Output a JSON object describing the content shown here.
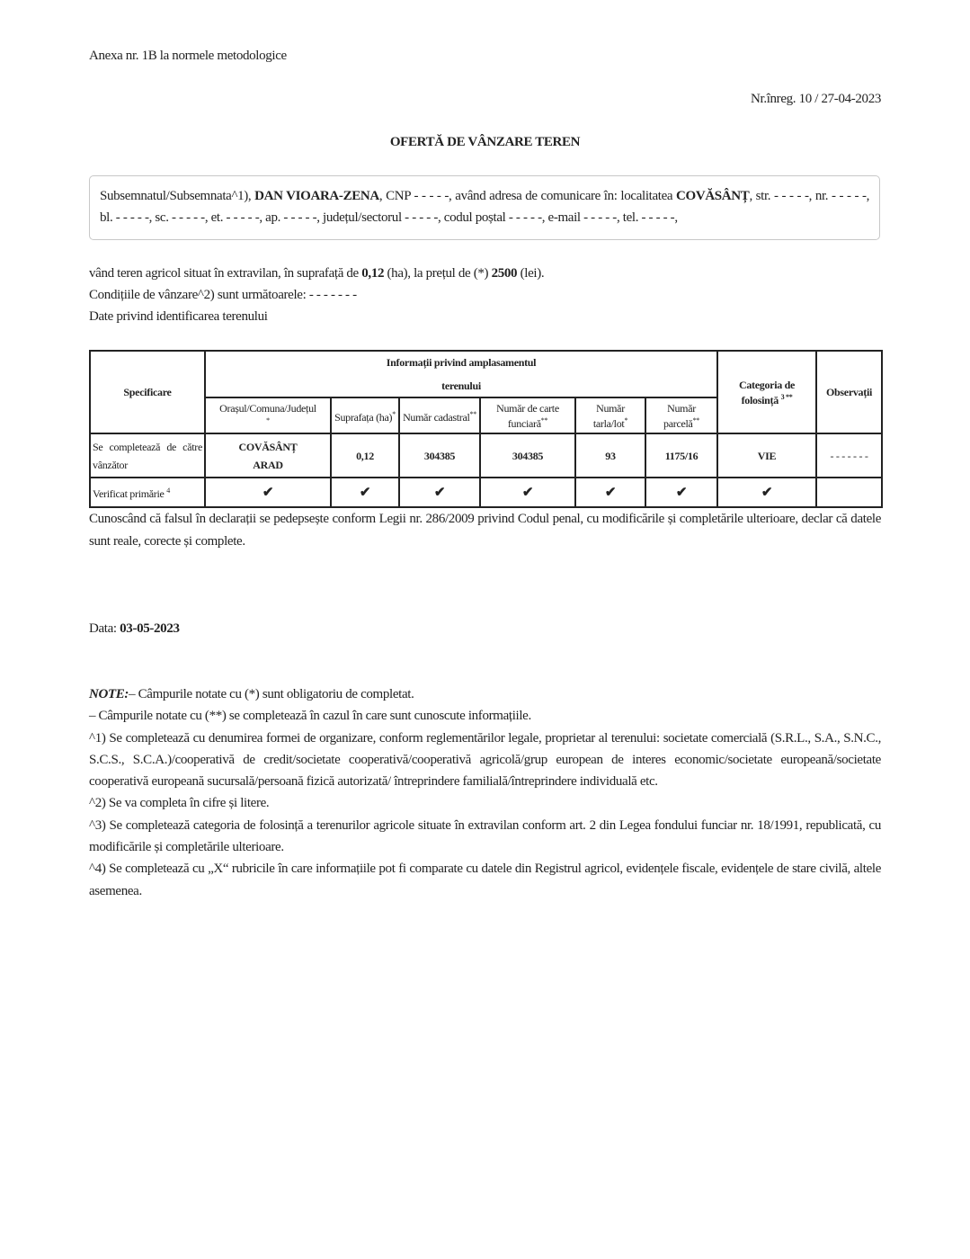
{
  "header": {
    "annex": "Anexa nr. 1B la normele metodologice",
    "registration": "Nr.înreg. 10 / 27-04-2023",
    "title": "OFERTĂ DE VÂNZARE TEREN"
  },
  "declarant": {
    "p1": "Subsemnatul/Subsemnata^1), ",
    "name": "DAN VIOARA-ZENA",
    "p2": ", CNP - - - - -, având adresa de comunicare în: localitatea ",
    "locality": "COVĂSÂNȚ",
    "p3": ", str. - - - - -, nr. - - - - -, bl. - - - - -, sc. - - - - -, et. - - - - -, ap. - - - - -, județul/sectorul - - - - -, codul poștal - - - - -, e-mail - - - - -, tel. - - - - -,"
  },
  "offer": {
    "p1": "vând teren agricol situat în extravilan, în suprafață de ",
    "area": "0,12",
    "p2": " (ha), la prețul de (*) ",
    "price": "2500",
    "p3": " (lei).",
    "conditions": "Condițiile de vânzare^2) sunt următoarele: - - - - - - -",
    "identification": "Date privind identificarea terenului"
  },
  "table": {
    "h_spec": "Specificare",
    "h_info_1": "Informații privind amplasamentul",
    "h_info_2": "terenului",
    "h_cat": "Categoria de folosință",
    "h_cat_sup": "3 **",
    "h_obs": "Observații",
    "sub": [
      {
        "label": "Orașul/Comuna/Județul",
        "sup": "*"
      },
      {
        "label": "Suprafața (ha)",
        "sup": "*"
      },
      {
        "label": "Număr cadastral",
        "sup": "**"
      },
      {
        "label": "Număr de carte funciară",
        "sup": "**"
      },
      {
        "label": "Număr tarla/lot",
        "sup": "*"
      },
      {
        "label": "Număr parcelă",
        "sup": "**"
      }
    ],
    "row1": {
      "label": "Se completează de către vânzător",
      "locality": "COVĂSÂNȚ",
      "county": "ARAD",
      "area": "0,12",
      "cadastral": "304385",
      "land_book": "304385",
      "tarla": "93",
      "parcel": "1175/16",
      "category": "VIE",
      "observations": "- - - - - - -"
    },
    "row2": {
      "label": "Verificat primărie",
      "label_sup": "4",
      "check": "✔"
    }
  },
  "statement": "Cunoscând că falsul în declarații se pedepsește conform Legii nr. 286/2009 privind Codul penal, cu modificările și completările ulterioare, declar că datele sunt reale, corecte și complete.",
  "date": {
    "label": "Data: ",
    "value": "03-05-2023"
  },
  "notes": {
    "label": "NOTE:",
    "n0": "– Câmpurile notate cu (*) sunt obligatoriu de completat.",
    "n1": "– Câmpurile notate cu (**) se completează în cazul în care sunt cunoscute informațiile.",
    "n2": "^1) Se completează cu denumirea formei de organizare, conform reglementărilor legale, proprietar al terenului: societate comercială (S.R.L., S.A., S.N.C., S.C.S., S.C.A.)/cooperativă de credit/societate cooperativă/cooperativă agricolă/grup european de interes economic/societate europeană/societate cooperativă europeană sucursală/persoană fizică autorizată/ întreprindere familială/întreprindere individuală etc.",
    "n3": "^2) Se va completa în cifre și litere.",
    "n4": "^3) Se completează categoria de folosință a terenurilor agricole situate în extravilan conform art. 2 din Legea fondului funciar nr. 18/1991, republicată, cu modificările și completările ulterioare.",
    "n5": "^4) Se completează cu „X“ rubricile în care informațiile pot fi comparate cu datele din Registrul agricol, evidențele fiscale, evidențele de stare civilă, altele asemenea."
  }
}
